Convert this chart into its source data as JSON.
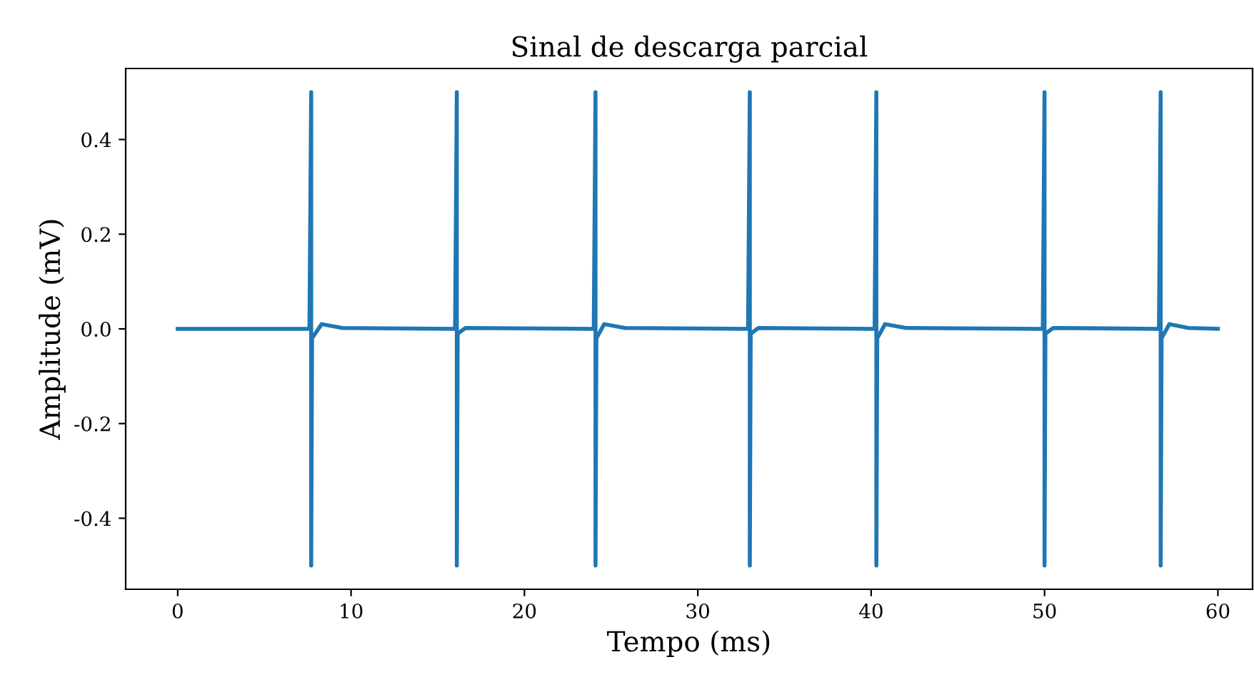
{
  "chart_data": {
    "type": "line",
    "title": "Sinal de descarga parcial",
    "xlabel": "Tempo (ms)",
    "ylabel": "Amplitude (mV)",
    "series": [
      {
        "color": "#1f77b4",
        "x": [
          0,
          7.6,
          7.7,
          7.7,
          7.75,
          8.3,
          9.5,
          16.0,
          16.1,
          16.1,
          16.15,
          16.6,
          24.0,
          24.1,
          24.1,
          24.15,
          24.6,
          25.8,
          32.9,
          33.0,
          33.0,
          33.05,
          33.5,
          40.2,
          40.3,
          40.3,
          40.35,
          40.8,
          42.0,
          49.9,
          50.0,
          50.0,
          50.05,
          50.5,
          56.6,
          56.7,
          56.7,
          56.75,
          57.2,
          58.3,
          60
        ],
        "values": [
          0,
          0,
          0.5,
          -0.5,
          -0.02,
          0.01,
          0.002,
          0,
          0.5,
          -0.5,
          -0.01,
          0.002,
          0,
          0.5,
          -0.5,
          -0.02,
          0.01,
          0.002,
          0,
          0.5,
          -0.5,
          -0.01,
          0.002,
          0,
          0.5,
          -0.5,
          -0.02,
          0.01,
          0.002,
          0,
          0.5,
          -0.5,
          -0.01,
          0.002,
          0,
          0.5,
          -0.5,
          -0.02,
          0.01,
          0.002,
          0
        ]
      }
    ],
    "xlim": [
      -3,
      62
    ],
    "ylim": [
      -0.55,
      0.55
    ],
    "xticks": [
      0,
      10,
      20,
      30,
      40,
      50,
      60
    ],
    "yticks": [
      {
        "value": -0.4,
        "label": "-0.4"
      },
      {
        "value": -0.2,
        "label": "-0.2"
      },
      {
        "value": 0,
        "label": "0.0"
      },
      {
        "value": 0.2,
        "label": "0.2"
      },
      {
        "value": 0.4,
        "label": "0.4"
      }
    ],
    "grid": false,
    "legend": false,
    "marker": "none",
    "line_style": "solid"
  }
}
